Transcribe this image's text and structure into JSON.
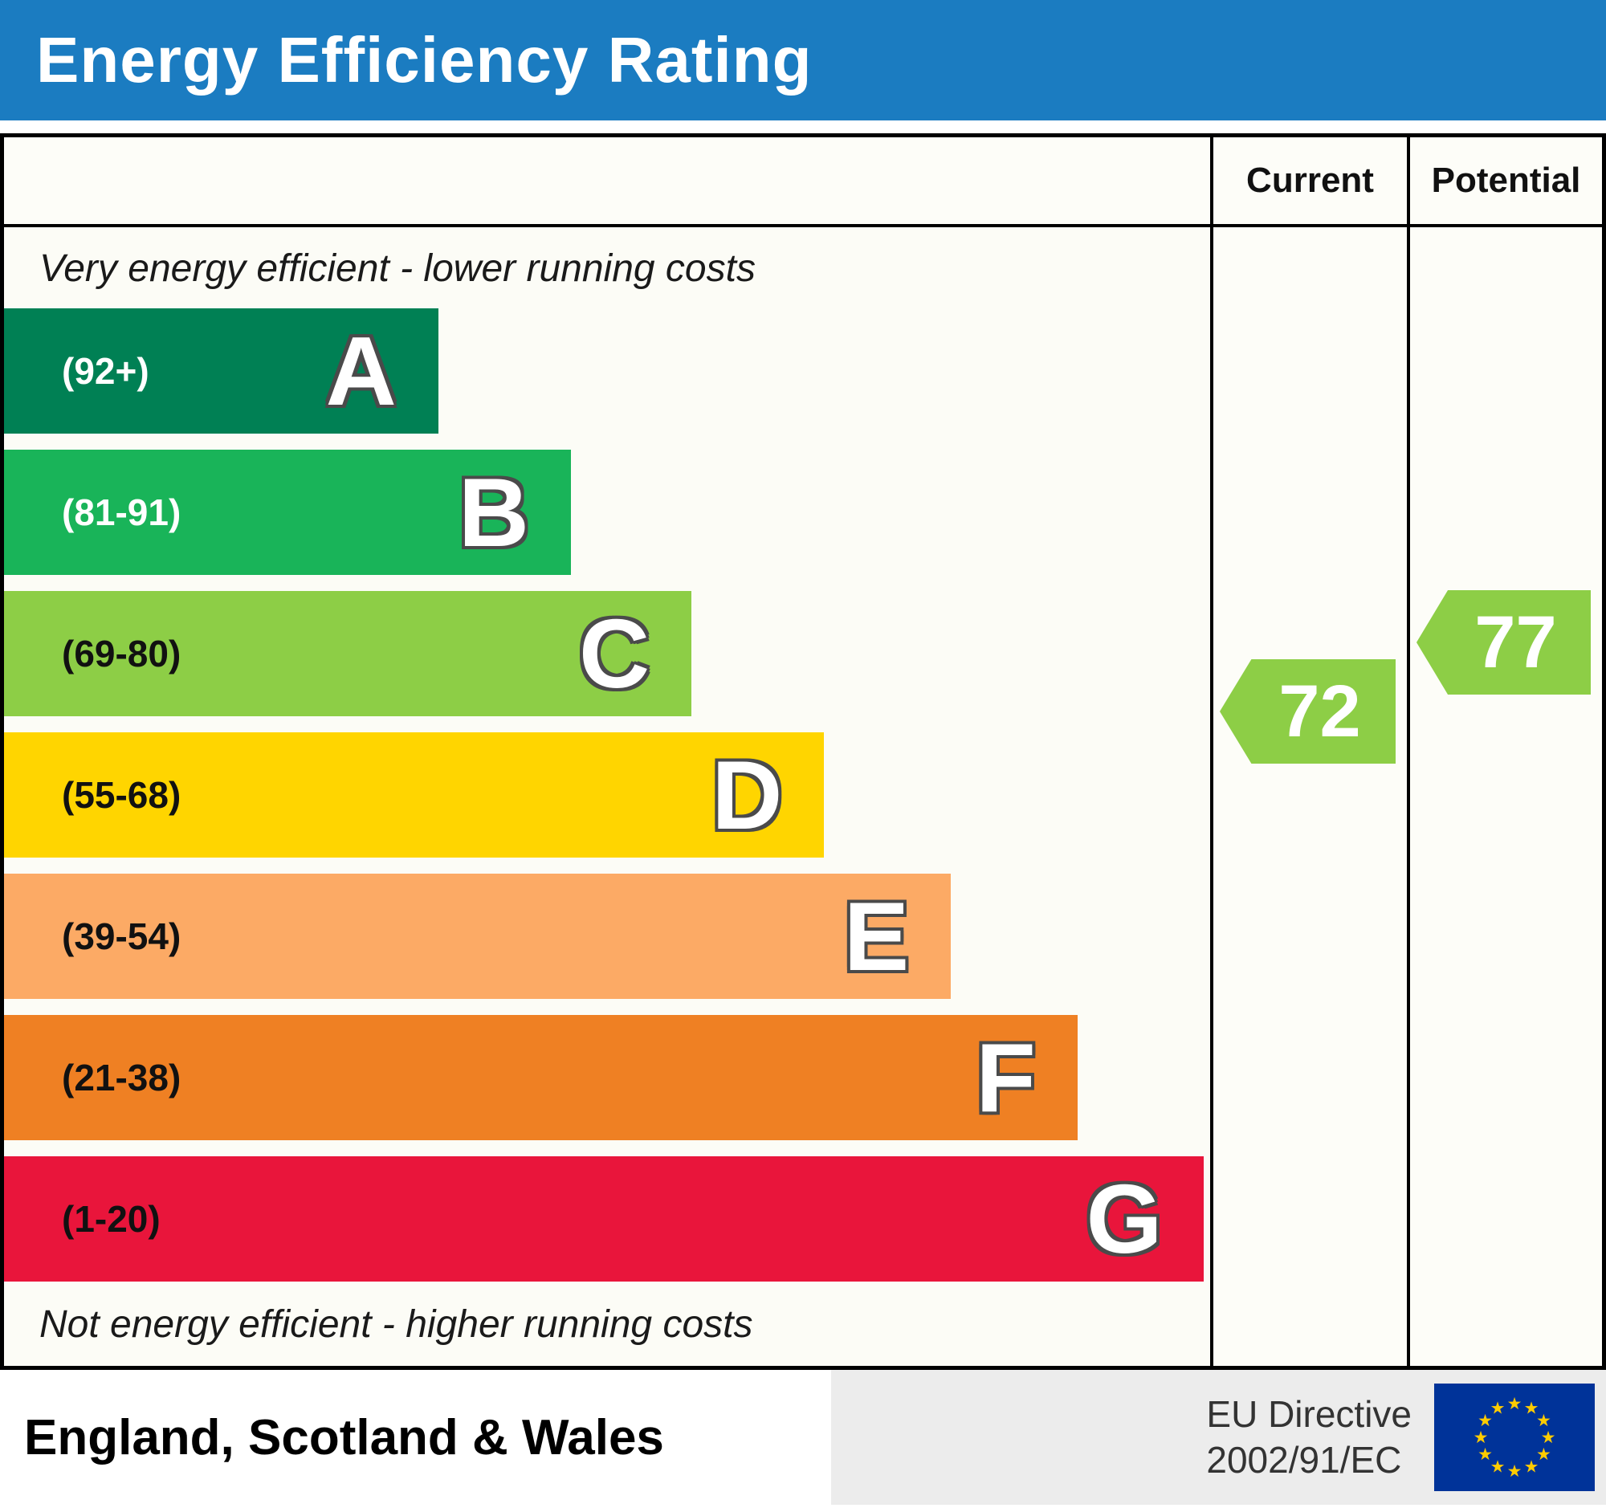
{
  "header": {
    "title": "Energy Efficiency Rating"
  },
  "columns": {
    "current_label": "Current",
    "potential_label": "Potential"
  },
  "captions": {
    "top": "Very energy efficient - lower running costs",
    "bottom": "Not energy efficient - higher running costs"
  },
  "bands": [
    {
      "letter": "A",
      "range": "(92+)",
      "color": "#008054",
      "width_pct": 36,
      "label_color": "#ffffff"
    },
    {
      "letter": "B",
      "range": "(81-91)",
      "color": "#19b459",
      "width_pct": 47,
      "label_color": "#ffffff"
    },
    {
      "letter": "C",
      "range": "(69-80)",
      "color": "#8dce46",
      "width_pct": 57,
      "label_color": "#111111"
    },
    {
      "letter": "D",
      "range": "(55-68)",
      "color": "#ffd500",
      "width_pct": 68,
      "label_color": "#111111"
    },
    {
      "letter": "E",
      "range": "(39-54)",
      "color": "#fcaa65",
      "width_pct": 78.5,
      "label_color": "#111111"
    },
    {
      "letter": "F",
      "range": "(21-38)",
      "color": "#ef8023",
      "width_pct": 89,
      "label_color": "#111111"
    },
    {
      "letter": "G",
      "range": "(1-20)",
      "color": "#e9153b",
      "width_pct": 99.5,
      "label_color": "#111111"
    }
  ],
  "scores": {
    "current": {
      "value": "72",
      "color": "#8dce46"
    },
    "potential": {
      "value": "77",
      "color": "#8dce46"
    }
  },
  "footer": {
    "region": "England, Scotland & Wales",
    "directive": [
      "EU Directive",
      "2002/91/EC"
    ]
  },
  "colors": {
    "header_bg": "#1b7cc1",
    "eu_flag_blue": "#003399",
    "eu_star_yellow": "#ffcc00"
  },
  "chart_data": {
    "type": "bar",
    "title": "Energy Efficiency Rating",
    "categories": [
      "A",
      "B",
      "C",
      "D",
      "E",
      "F",
      "G"
    ],
    "band_ranges": [
      "92+",
      "81-91",
      "69-80",
      "55-68",
      "39-54",
      "21-38",
      "1-20"
    ],
    "band_colors": [
      "#008054",
      "#19b459",
      "#8dce46",
      "#ffd500",
      "#fcaa65",
      "#ef8023",
      "#e9153b"
    ],
    "bar_relative_widths_pct": [
      36,
      47,
      57,
      68,
      78.5,
      89,
      99.5
    ],
    "scale": [
      1,
      100
    ],
    "current_rating": 72,
    "current_band": "C",
    "potential_rating": 77,
    "potential_band": "C",
    "top_annotation": "Very energy efficient - lower running costs",
    "bottom_annotation": "Not energy efficient - higher running costs",
    "region": "England, Scotland & Wales",
    "directive": "EU Directive 2002/91/EC",
    "legend_position": "none",
    "grid": false
  }
}
